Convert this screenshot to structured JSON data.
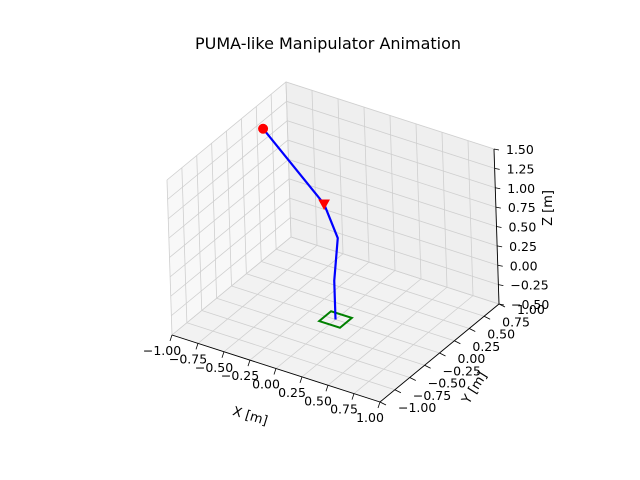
{
  "figure": {
    "title": "PUMA-like Manipulator Animation"
  },
  "chart_data": {
    "type": "line3d",
    "title": "PUMA-like Manipulator Animation",
    "xlabel": "X [m]",
    "ylabel": "Y [m]",
    "zlabel": "Z [m]",
    "xlim": [
      -1.0,
      1.0
    ],
    "ylim": [
      -1.0,
      1.0
    ],
    "zlim": [
      -0.5,
      1.5
    ],
    "x_ticks": [
      "−1.00",
      "−0.75",
      "−0.50",
      "−0.25",
      "0.00",
      "0.25",
      "0.50",
      "0.75",
      "1.00"
    ],
    "y_ticks": [
      "−1.00",
      "−0.75",
      "−0.50",
      "−0.25",
      "0.00",
      "0.25",
      "0.50",
      "0.75",
      "1.00"
    ],
    "z_ticks": [
      "−0.50",
      "−0.25",
      "0.00",
      "0.25",
      "0.50",
      "0.75",
      "1.00",
      "1.25",
      "1.50"
    ],
    "grid": true,
    "base_square": {
      "color": "#008000",
      "half_size": 0.1,
      "z": -0.5
    },
    "arm": {
      "color": "#0000ff",
      "points": [
        {
          "x": 0.0,
          "y": 0.0,
          "z": -0.5
        },
        {
          "x": 0.0,
          "y": 0.0,
          "z": 0.0
        },
        {
          "x": 0.0,
          "y": 0.08,
          "z": 0.5
        },
        {
          "x": -0.3,
          "y": 0.38,
          "z": 0.62
        },
        {
          "x": -1.0,
          "y": 0.6,
          "z": 1.15
        }
      ]
    },
    "target_marker": {
      "shape": "triangle",
      "color": "#ff0000",
      "x": -0.3,
      "y": 0.38,
      "z": 0.62
    },
    "end_effector": {
      "shape": "circle",
      "color": "#ff0000",
      "x": -1.0,
      "y": 0.6,
      "z": 1.15
    }
  }
}
